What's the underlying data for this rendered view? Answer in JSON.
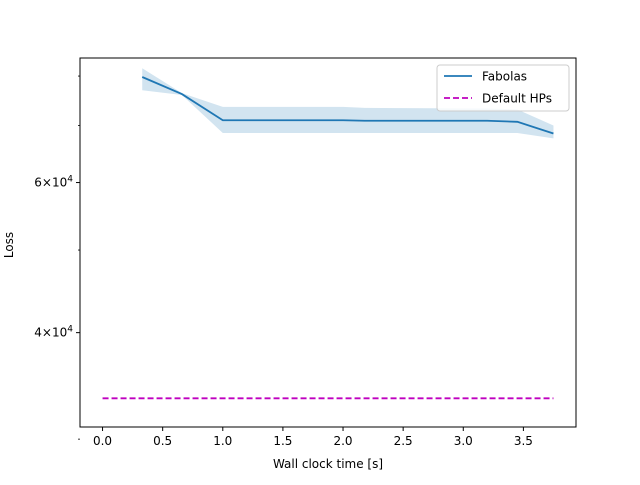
{
  "chart_data": {
    "type": "line",
    "title": "",
    "xlabel": "Wall clock time [s]",
    "ylabel": "Loss",
    "xlim": [
      -0.1875,
      3.9375
    ],
    "ylim": [
      31000,
      84000
    ],
    "yscale": "log",
    "grid": false,
    "legend_position": "top-right",
    "x_ticks": [
      {
        "value": 0.0,
        "label": "0.0"
      },
      {
        "value": 0.5,
        "label": "0.5"
      },
      {
        "value": 1.0,
        "label": "1.0"
      },
      {
        "value": 1.5,
        "label": "1.5"
      },
      {
        "value": 2.0,
        "label": "2.0"
      },
      {
        "value": 2.5,
        "label": "2.5"
      },
      {
        "value": 3.0,
        "label": "3.0"
      },
      {
        "value": 3.5,
        "label": "3.5"
      }
    ],
    "y_ticks": [
      {
        "value": 40000,
        "mantissa": "4",
        "base": "10",
        "exponent": "4"
      },
      {
        "value": 60000,
        "mantissa": "6",
        "base": "10",
        "exponent": "4"
      }
    ],
    "y_minor_ticks": [
      30000,
      50000,
      70000,
      80000
    ],
    "series": [
      {
        "name": "Fabolas",
        "color": "#1f77b4",
        "style": "solid",
        "x": [
          0.33,
          0.66,
          1.0,
          2.0,
          2.18,
          3.2,
          3.45,
          3.75
        ],
        "y": [
          79800,
          76200,
          71000,
          71000,
          70900,
          70900,
          70700,
          68500
        ],
        "y_lower": [
          77000,
          76000,
          68600,
          68600,
          68600,
          68600,
          68600,
          67600
        ],
        "y_upper": [
          81700,
          76400,
          73600,
          73600,
          73400,
          73300,
          73100,
          70000
        ]
      },
      {
        "name": "Default HPs",
        "color": "#bf00bf",
        "style": "dashed",
        "x": [
          0.0,
          3.75
        ],
        "y": [
          33500,
          33500
        ]
      }
    ]
  }
}
